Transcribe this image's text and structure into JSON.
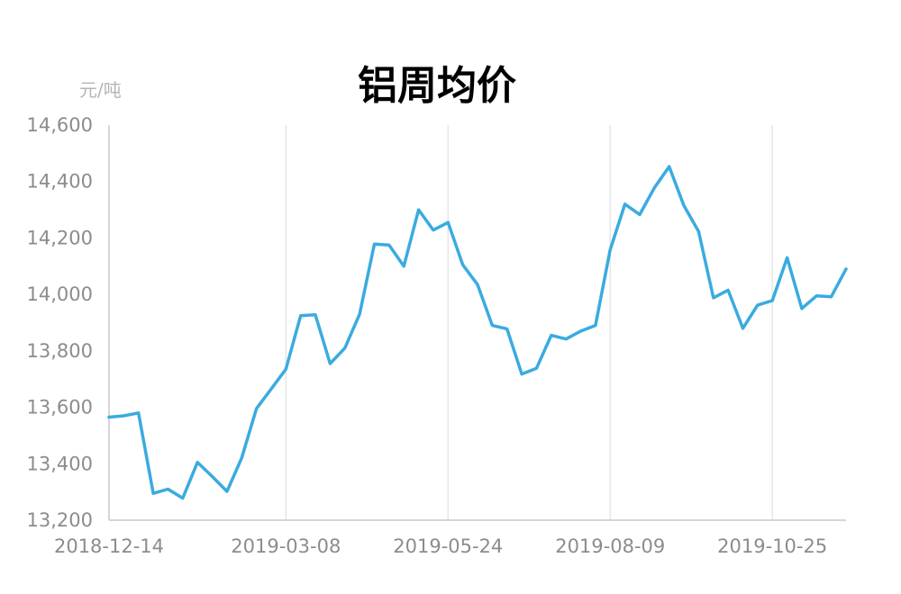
{
  "chart_data": {
    "type": "line",
    "title": "铝周均价",
    "ylabel": "元/吨",
    "ylim": [
      13200,
      14600
    ],
    "yticks": [
      "13,200",
      "13,400",
      "13,600",
      "13,800",
      "14,000",
      "14,200",
      "14,400",
      "14,600"
    ],
    "xticks": [
      "2018-12-14",
      "2019-03-08",
      "2019-05-24",
      "2019-08-09",
      "2019-10-25"
    ],
    "grid": "vertical",
    "line_color": "#3aabdf",
    "x": [
      "2018-12-14",
      "2018-12-21",
      "2018-12-28",
      "2019-01-04",
      "2019-01-11",
      "2019-01-18",
      "2019-01-25",
      "2019-02-01",
      "2019-02-08",
      "2019-02-15",
      "2019-02-22",
      "2019-03-01",
      "2019-03-08",
      "2019-03-15",
      "2019-03-22",
      "2019-03-29",
      "2019-04-05",
      "2019-04-12",
      "2019-04-19",
      "2019-04-26",
      "2019-05-03",
      "2019-05-10",
      "2019-05-17",
      "2019-05-24",
      "2019-05-31",
      "2019-06-07",
      "2019-06-14",
      "2019-06-21",
      "2019-06-28",
      "2019-07-05",
      "2019-07-12",
      "2019-07-19",
      "2019-07-26",
      "2019-08-02",
      "2019-08-09",
      "2019-08-16",
      "2019-08-23",
      "2019-08-30",
      "2019-09-06",
      "2019-09-13",
      "2019-09-20",
      "2019-09-27",
      "2019-10-04",
      "2019-10-11",
      "2019-10-18",
      "2019-10-25",
      "2019-11-01",
      "2019-11-08",
      "2019-11-15",
      "2019-11-22",
      "2019-11-29"
    ],
    "values": [
      13565,
      13570,
      13580,
      13295,
      13310,
      13278,
      13405,
      13355,
      13302,
      13420,
      13595,
      13665,
      13735,
      13925,
      13928,
      13755,
      13810,
      13930,
      14178,
      14175,
      14100,
      14300,
      14228,
      14255,
      14105,
      14035,
      13890,
      13878,
      13718,
      13738,
      13855,
      13842,
      13870,
      13890,
      14158,
      14320,
      14283,
      14378,
      14453,
      14315,
      14223,
      13988,
      14015,
      13880,
      13962,
      13978,
      14130,
      13950,
      13995,
      13992,
      14090
    ]
  }
}
